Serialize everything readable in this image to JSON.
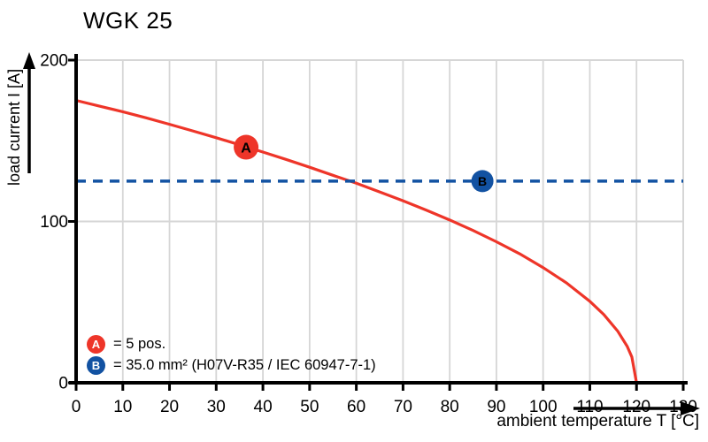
{
  "chart_data": {
    "type": "line",
    "title": "WGK 25",
    "xlabel": "ambient temperature T [°C]",
    "ylabel": "load current I [A]",
    "xlim": [
      0,
      130
    ],
    "ylim": [
      0,
      200
    ],
    "x_ticks": [
      0,
      10,
      20,
      30,
      40,
      50,
      60,
      70,
      80,
      90,
      100,
      110,
      120,
      130
    ],
    "y_ticks": [
      0,
      100,
      200
    ],
    "grid": {
      "vertical_step_deg_c": 10,
      "horizontal_lines_at_a": [
        100
      ],
      "color": "#d6d6d6"
    },
    "series": [
      {
        "name": "A",
        "legend_label": "= 5 pos.",
        "color": "#ee3529",
        "line_style": "solid",
        "points": [
          [
            0,
            175
          ],
          [
            5,
            171.5
          ],
          [
            10,
            168
          ],
          [
            15,
            164.2
          ],
          [
            20,
            160.2
          ],
          [
            25,
            156.1
          ],
          [
            30,
            151.9
          ],
          [
            35,
            147.5
          ],
          [
            40,
            143
          ],
          [
            45,
            138.4
          ],
          [
            50,
            133.6
          ],
          [
            55,
            128.6
          ],
          [
            60,
            123.7
          ],
          [
            65,
            118.3
          ],
          [
            70,
            112.8
          ],
          [
            75,
            107
          ],
          [
            80,
            100.9
          ],
          [
            85,
            94.4
          ],
          [
            90,
            87.4
          ],
          [
            95,
            79.9
          ],
          [
            100,
            71.4
          ],
          [
            105,
            61.9
          ],
          [
            110,
            50.5
          ],
          [
            113,
            42.3
          ],
          [
            116,
            31.9
          ],
          [
            118,
            22.6
          ],
          [
            119,
            16
          ],
          [
            120,
            0
          ]
        ],
        "marker": {
          "letter": "A",
          "t": 36.4,
          "i": 146
        }
      },
      {
        "name": "B",
        "legend_label": "= 35.0 mm² (H07V-R35 / IEC 60947-7-1)",
        "color": "#1252a2",
        "line_style": "dashed",
        "points": [
          [
            0,
            125
          ],
          [
            130,
            125
          ]
        ],
        "marker": {
          "letter": "B",
          "t": 87,
          "i": 125
        }
      }
    ]
  }
}
